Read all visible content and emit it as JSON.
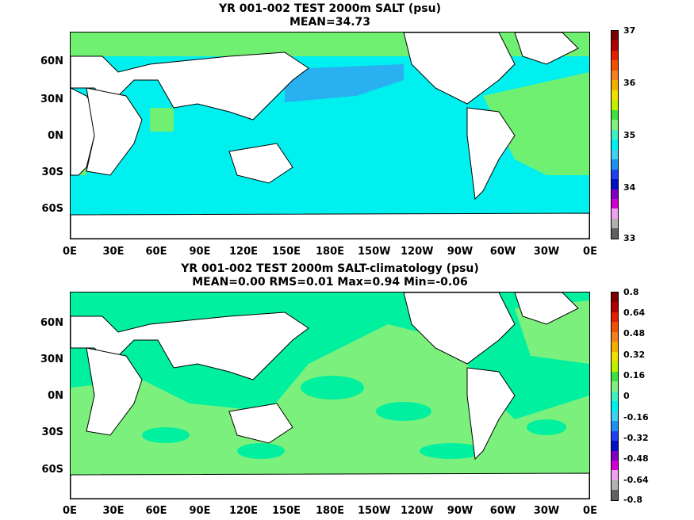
{
  "panels": [
    {
      "title1": "YR 001-002 TEST 2000m SALT (psu)",
      "title2": "MEAN=34.73",
      "colorbar": {
        "labels": [
          "37",
          "36",
          "35",
          "34",
          "33"
        ],
        "colors": [
          "#7a0000",
          "#b00000",
          "#e02000",
          "#f05000",
          "#f08020",
          "#f0b000",
          "#f0e000",
          "#c0f000",
          "#40e040",
          "#80f080",
          "#40f0c0",
          "#00f0f0",
          "#40d0f0",
          "#2090f0",
          "#2040f0",
          "#0010c0",
          "#8000c0",
          "#d000d0",
          "#f0a0f0",
          "#b0b0b0",
          "#606060"
        ],
        "ocean": "#00f0f0",
        "ocean2": "#28b0f0",
        "accent": "#70f070"
      }
    },
    {
      "title1": "YR 001-002 TEST 2000m SALT-climatology (psu)",
      "title2": "MEAN=0.00   RMS=0.01   Max=0.94   Min=-0.06",
      "colorbar": {
        "labels": [
          "0.8",
          "0.64",
          "0.48",
          "0.32",
          "0.16",
          "0",
          "-0.16",
          "-0.32",
          "-0.48",
          "-0.64",
          "-0.8"
        ],
        "colors": [
          "#7a0000",
          "#b00000",
          "#e02000",
          "#f05000",
          "#f08020",
          "#f0b000",
          "#f0e000",
          "#c0f000",
          "#40e040",
          "#80f080",
          "#40f0c0",
          "#00f0f0",
          "#40d0f0",
          "#2090f0",
          "#2040f0",
          "#0010c0",
          "#8000c0",
          "#d000d0",
          "#f0a0f0",
          "#b0b0b0",
          "#606060"
        ],
        "ocean": "#7cf07c",
        "ocean2": "#00f0a0",
        "accent": "#40e040"
      }
    }
  ],
  "lat_labels": [
    "60N",
    "30N",
    "0N",
    "30S",
    "60S"
  ],
  "lon_labels": [
    "0E",
    "30E",
    "60E",
    "90E",
    "120E",
    "150E",
    "180E",
    "150W",
    "120W",
    "90W",
    "60W",
    "30W",
    "0E"
  ]
}
